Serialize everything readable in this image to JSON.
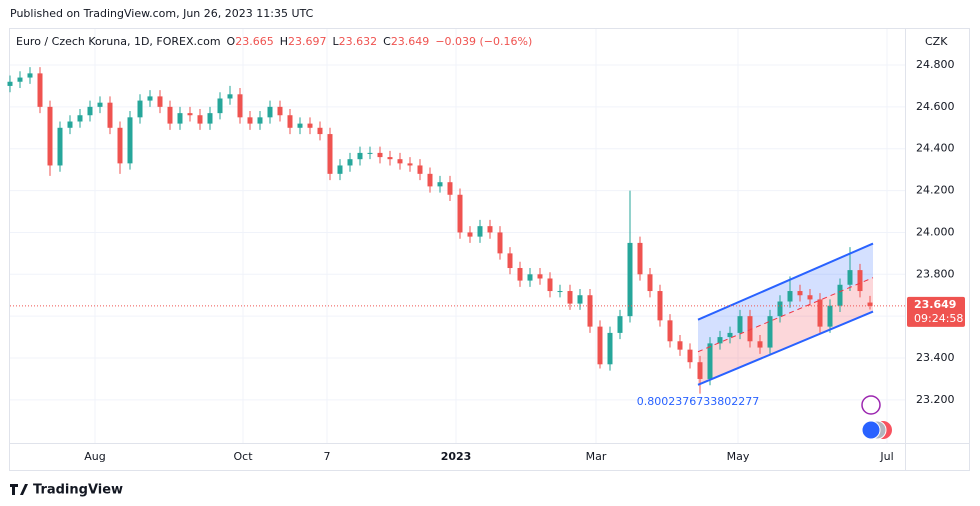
{
  "published": "Published on TradingView.com, Jun 26, 2023 11:35 UTC",
  "footer": "TradingView",
  "chart_data": {
    "type": "candlestick",
    "symbol": "Euro / Czech Koruna, 1D, FOREX.com",
    "ohlc_labels": [
      {
        "label": "O",
        "value": 23.665
      },
      {
        "label": "H",
        "value": 23.697
      },
      {
        "label": "L",
        "value": 23.632
      },
      {
        "label": "C",
        "value": 23.649
      }
    ],
    "change": "−0.039 (−0.16%)",
    "currency": "CZK",
    "last_price": 23.649,
    "countdown": "09:24:58",
    "up_color": "#26a69a",
    "down_color": "#ef5350",
    "grid": true,
    "x": [
      0,
      3,
      6,
      9,
      12,
      15,
      18,
      21,
      24,
      27,
      30,
      33,
      36,
      39,
      42,
      45,
      48,
      51,
      54,
      57,
      60,
      63,
      66,
      69,
      72,
      75,
      78,
      81,
      84,
      87,
      90,
      93,
      96,
      99,
      102,
      105,
      108,
      111,
      114,
      117,
      120,
      123,
      126,
      129,
      132,
      135,
      138,
      141,
      144,
      147,
      150,
      153,
      156,
      159,
      162,
      165,
      168,
      171,
      174,
      177,
      180,
      183,
      186,
      189,
      192,
      195,
      198,
      201,
      204,
      207,
      210,
      213,
      216,
      219,
      222,
      225,
      228,
      231,
      234,
      237,
      240,
      243,
      246,
      249,
      252,
      255,
      258
    ],
    "open": [
      24.7,
      24.72,
      24.74,
      24.76,
      24.6,
      24.32,
      24.5,
      24.53,
      24.56,
      24.6,
      24.62,
      24.5,
      24.33,
      24.55,
      24.63,
      24.65,
      24.6,
      24.52,
      24.57,
      24.56,
      24.52,
      24.57,
      24.64,
      24.66,
      24.55,
      24.52,
      24.55,
      24.6,
      24.56,
      24.5,
      24.52,
      24.5,
      24.47,
      24.28,
      24.32,
      24.35,
      24.38,
      24.38,
      24.36,
      24.35,
      24.33,
      24.32,
      24.28,
      24.22,
      24.24,
      24.18,
      24.0,
      23.98,
      24.03,
      24.0,
      23.9,
      23.83,
      23.77,
      23.8,
      23.78,
      23.72,
      23.72,
      23.66,
      23.7,
      23.55,
      23.37,
      23.52,
      23.6,
      23.95,
      23.8,
      23.72,
      23.58,
      23.48,
      23.44,
      23.38,
      23.3,
      23.47,
      23.5,
      23.52,
      23.6,
      23.48,
      23.45,
      23.6,
      23.67,
      23.72,
      23.7,
      23.68,
      23.55,
      23.65,
      23.75,
      23.82,
      23.665
    ],
    "high": [
      24.75,
      24.77,
      24.79,
      24.79,
      24.63,
      24.53,
      24.56,
      24.59,
      24.63,
      24.65,
      24.65,
      24.53,
      24.58,
      24.66,
      24.68,
      24.68,
      24.63,
      24.6,
      24.6,
      24.59,
      24.6,
      24.67,
      24.7,
      24.69,
      24.58,
      24.58,
      24.63,
      24.63,
      24.59,
      24.55,
      24.55,
      24.53,
      24.5,
      24.35,
      24.38,
      24.41,
      24.41,
      24.41,
      24.39,
      24.38,
      24.36,
      24.35,
      24.31,
      24.27,
      24.27,
      24.21,
      24.03,
      24.06,
      24.06,
      24.03,
      23.93,
      23.86,
      23.83,
      23.83,
      23.81,
      23.75,
      23.75,
      23.73,
      23.73,
      23.58,
      23.55,
      23.63,
      24.2,
      23.98,
      23.83,
      23.75,
      23.61,
      23.51,
      23.47,
      23.41,
      23.5,
      23.53,
      23.55,
      23.63,
      23.63,
      23.51,
      23.63,
      23.7,
      23.79,
      23.75,
      23.73,
      23.71,
      23.68,
      23.78,
      23.93,
      23.85,
      23.697
    ],
    "low": [
      24.67,
      24.69,
      24.71,
      24.57,
      24.27,
      24.29,
      24.47,
      24.5,
      24.53,
      24.57,
      24.47,
      24.28,
      24.3,
      24.52,
      24.6,
      24.57,
      24.49,
      24.49,
      24.53,
      24.49,
      24.49,
      24.54,
      24.61,
      24.52,
      24.49,
      24.49,
      24.52,
      24.53,
      24.47,
      24.47,
      24.47,
      24.44,
      24.25,
      24.25,
      24.29,
      24.32,
      24.35,
      24.33,
      24.32,
      24.3,
      24.29,
      24.25,
      24.19,
      24.19,
      24.15,
      23.97,
      23.95,
      23.95,
      23.97,
      23.87,
      23.8,
      23.74,
      23.74,
      23.75,
      23.69,
      23.69,
      23.63,
      23.63,
      23.52,
      23.35,
      23.34,
      23.49,
      23.57,
      23.77,
      23.69,
      23.55,
      23.45,
      23.41,
      23.35,
      23.23,
      23.27,
      23.44,
      23.47,
      23.49,
      23.45,
      23.42,
      23.42,
      23.57,
      23.64,
      23.67,
      23.65,
      23.52,
      23.52,
      23.62,
      23.72,
      23.69,
      23.632
    ],
    "close": [
      24.72,
      24.74,
      24.76,
      24.6,
      24.32,
      24.5,
      24.53,
      24.56,
      24.6,
      24.62,
      24.5,
      24.33,
      24.55,
      24.63,
      24.65,
      24.6,
      24.52,
      24.57,
      24.56,
      24.52,
      24.57,
      24.64,
      24.66,
      24.55,
      24.52,
      24.55,
      24.6,
      24.56,
      24.5,
      24.52,
      24.5,
      24.47,
      24.28,
      24.32,
      24.35,
      24.38,
      24.38,
      24.36,
      24.35,
      24.33,
      24.32,
      24.28,
      24.22,
      24.24,
      24.18,
      24.0,
      23.98,
      24.03,
      24.0,
      23.9,
      23.83,
      23.77,
      23.8,
      23.78,
      23.72,
      23.72,
      23.66,
      23.7,
      23.55,
      23.37,
      23.52,
      23.6,
      23.95,
      23.8,
      23.72,
      23.58,
      23.48,
      23.44,
      23.38,
      23.3,
      23.47,
      23.5,
      23.52,
      23.6,
      23.48,
      23.45,
      23.6,
      23.67,
      23.72,
      23.7,
      23.68,
      23.55,
      23.65,
      23.75,
      23.82,
      23.72,
      23.649
    ],
    "xlim": [
      0,
      268.5
    ],
    "xticks": [
      {
        "value": 25.5,
        "label": "Aug"
      },
      {
        "value": 69.9,
        "label": "Oct"
      },
      {
        "value": 95.1,
        "label": "7"
      },
      {
        "value": 133.8,
        "label": "2023"
      },
      {
        "value": 175.8,
        "label": "Mar"
      },
      {
        "value": 218.4,
        "label": "May"
      },
      {
        "value": 263.1,
        "label": "Jul"
      }
    ],
    "ylim": [
      22.994,
      24.972
    ],
    "yticks": [
      {
        "value": 23.2,
        "label": "23.200"
      },
      {
        "value": 23.4,
        "label": "23.400"
      },
      {
        "value": 23.6,
        "label": "23.600"
      },
      {
        "value": 23.8,
        "label": "23.800"
      },
      {
        "value": 24.0,
        "label": "24.000"
      },
      {
        "value": 24.2,
        "label": "24.200"
      },
      {
        "value": 24.4,
        "label": "24.400"
      },
      {
        "value": 24.6,
        "label": "24.600"
      },
      {
        "value": 24.8,
        "label": "24.800"
      }
    ],
    "channel": {
      "x": [
        206.4,
        258.9
      ],
      "upper": [
        23.583,
        23.947
      ],
      "middle": [
        23.43,
        23.784
      ],
      "lower": [
        23.272,
        23.622
      ],
      "label": "0.8002376733802277",
      "color": "#2962ff"
    }
  }
}
